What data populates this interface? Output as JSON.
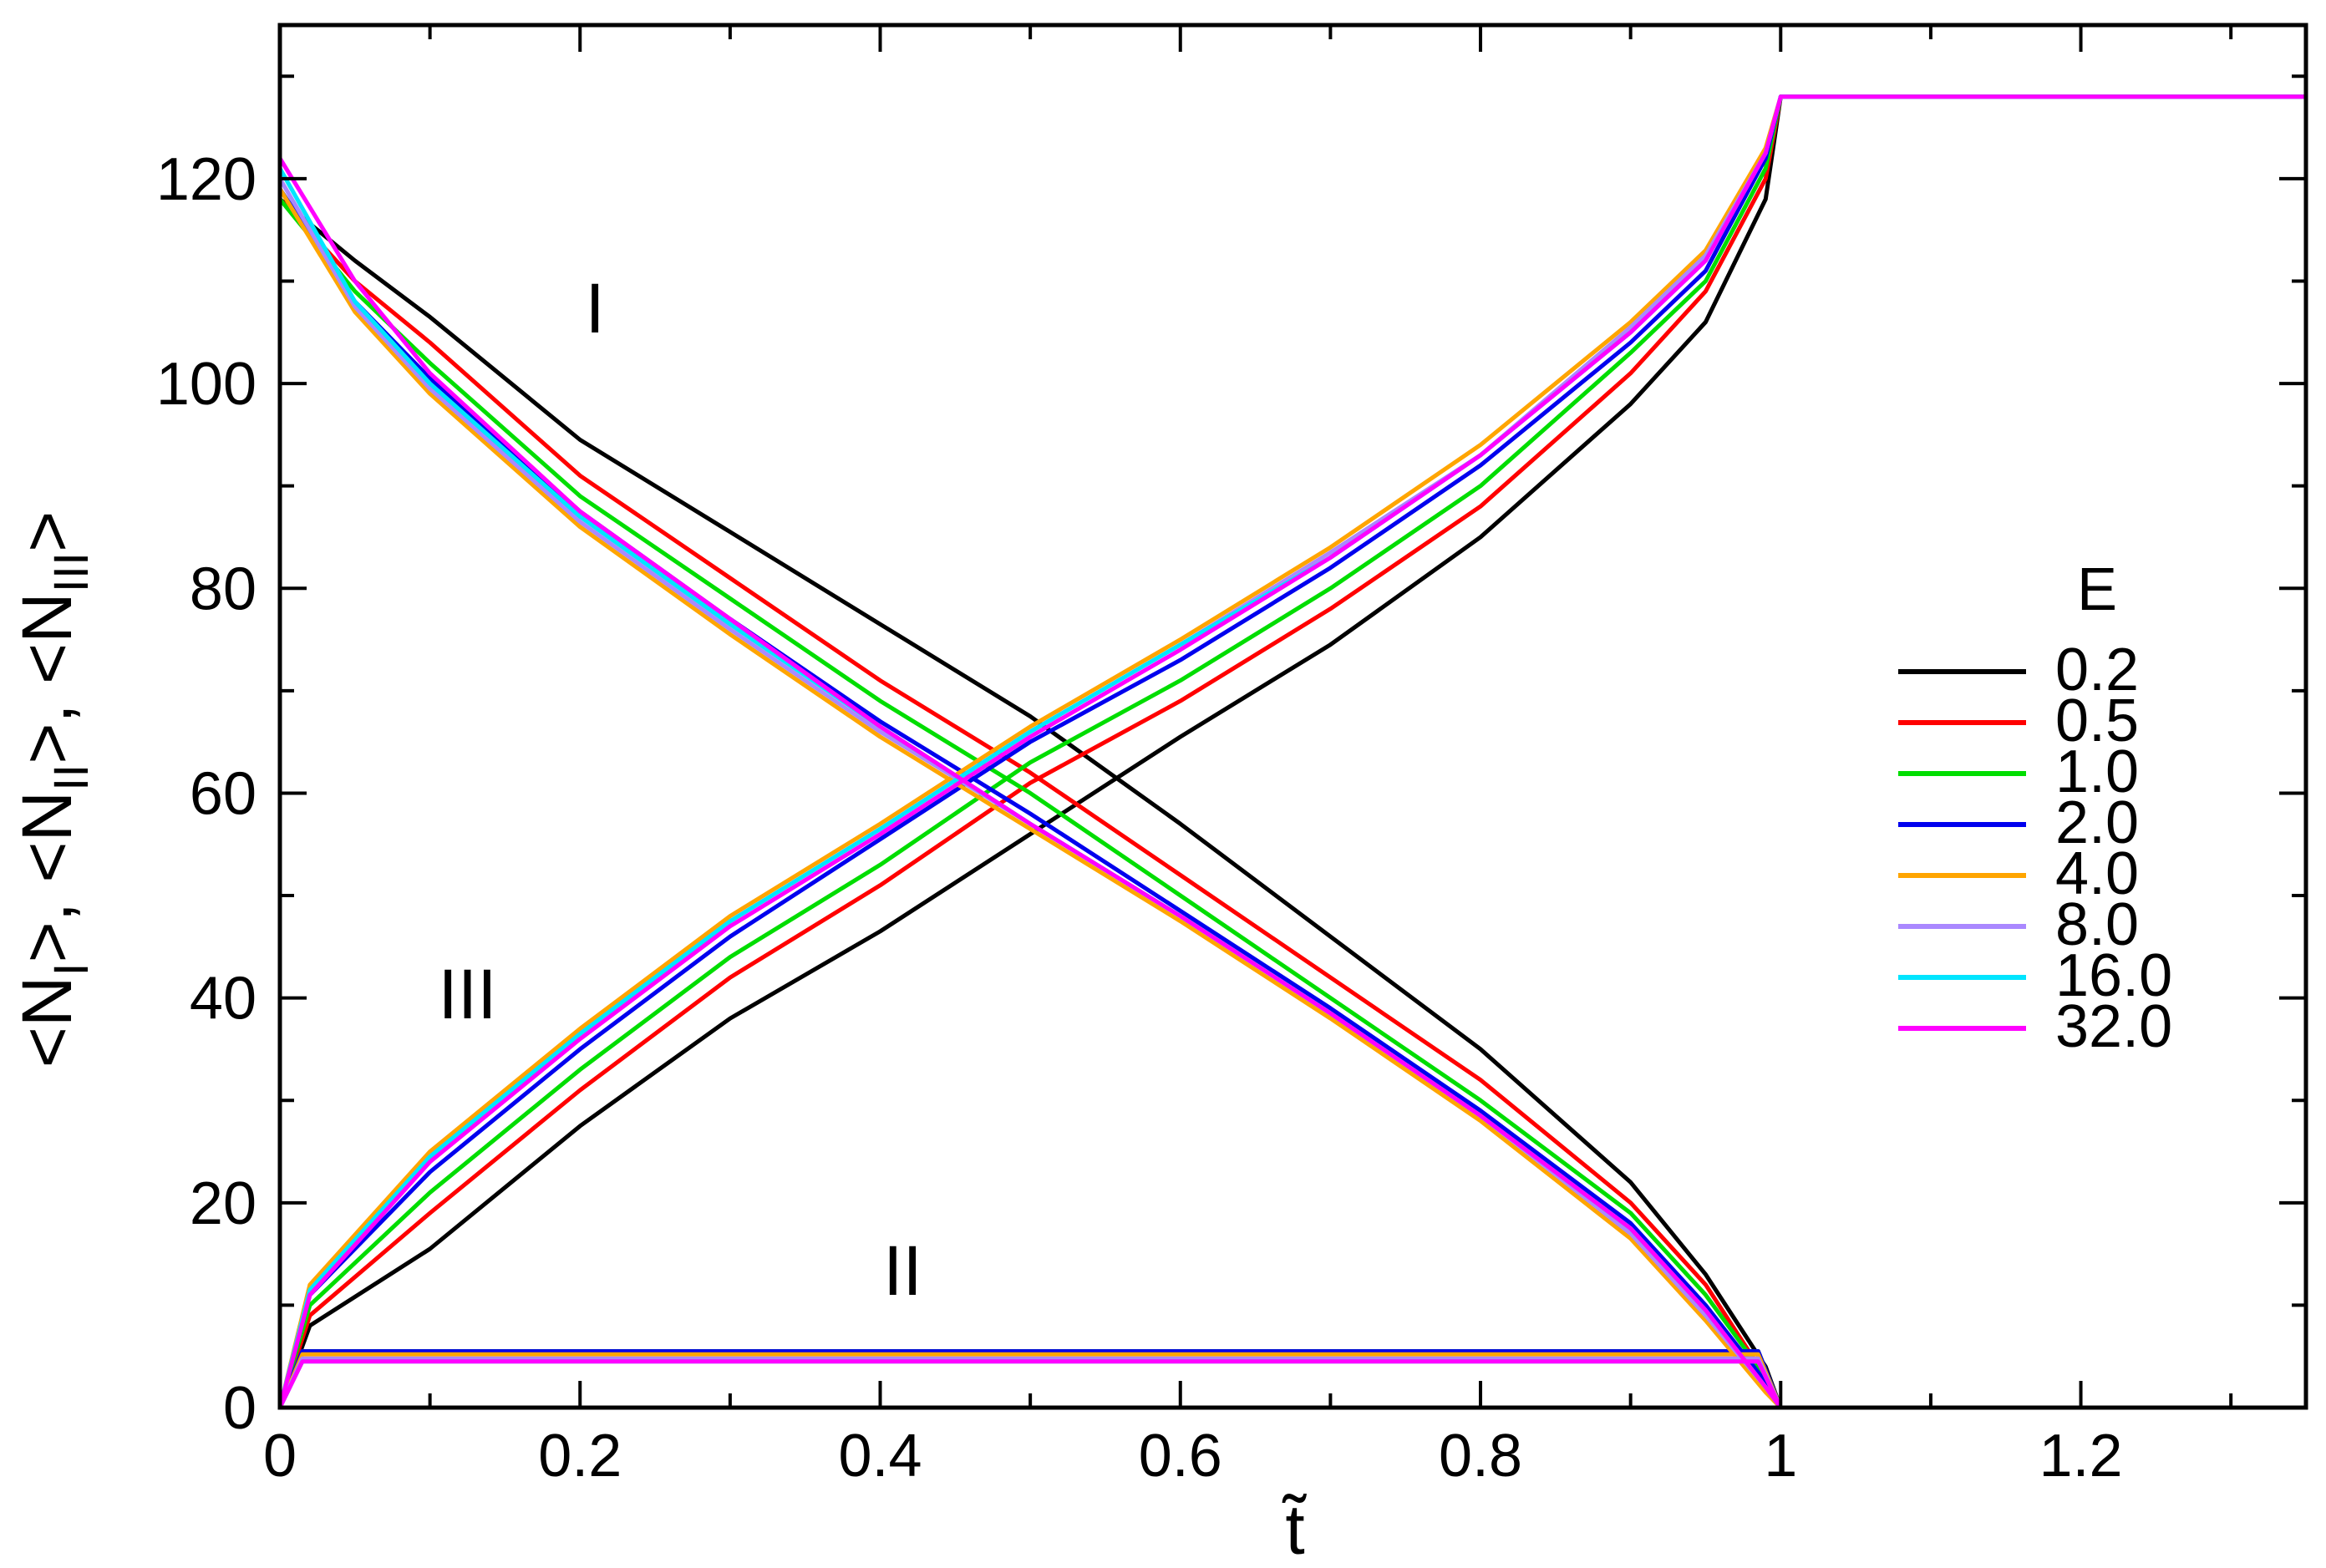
{
  "chart_data": {
    "type": "line",
    "xlabel": "t̃",
    "ylabel_parts": [
      "<N",
      "I",
      ">,   <N",
      "II",
      ">,   <N",
      "III",
      ">"
    ],
    "xlim": [
      0,
      1.35
    ],
    "ylim": [
      0,
      135
    ],
    "x_ticks": [
      0,
      0.2,
      0.4,
      0.6,
      0.8,
      1,
      1.2
    ],
    "x_tick_labels": [
      "0",
      "0.2",
      "0.4",
      "0.6",
      "0.8",
      "1",
      "1.2"
    ],
    "y_ticks": [
      0,
      20,
      40,
      60,
      80,
      100,
      120
    ],
    "y_tick_labels": [
      "0",
      "20",
      "40",
      "60",
      "80",
      "100",
      "120"
    ],
    "legend_title": "E",
    "legend_position": "right",
    "region_labels": [
      {
        "text": "I",
        "x": 0.21,
        "y": 105
      },
      {
        "text": "III",
        "x": 0.125,
        "y": 38
      },
      {
        "text": "II",
        "x": 0.415,
        "y": 11
      }
    ],
    "n_final": 128,
    "series": [
      {
        "name": "0.2",
        "color": "#000000",
        "region_I": [
          [
            0,
            118
          ],
          [
            0.05,
            112
          ],
          [
            0.1,
            106.5
          ],
          [
            0.2,
            94.5
          ],
          [
            0.3,
            85.5
          ],
          [
            0.4,
            76.5
          ],
          [
            0.5,
            67.5
          ],
          [
            0.6,
            57
          ],
          [
            0.7,
            46
          ],
          [
            0.8,
            35
          ],
          [
            0.9,
            22
          ],
          [
            0.95,
            13
          ],
          [
            0.99,
            4
          ],
          [
            1.0,
            0
          ]
        ],
        "region_III": [
          [
            0,
            0
          ],
          [
            0.02,
            8
          ],
          [
            0.1,
            15.5
          ],
          [
            0.2,
            27.5
          ],
          [
            0.3,
            38
          ],
          [
            0.4,
            46.5
          ],
          [
            0.5,
            56
          ],
          [
            0.6,
            65.5
          ],
          [
            0.7,
            74.5
          ],
          [
            0.8,
            85
          ],
          [
            0.9,
            98
          ],
          [
            0.95,
            106
          ],
          [
            0.99,
            118
          ],
          [
            1.0,
            128
          ]
        ],
        "region_II": 5.5
      },
      {
        "name": "0.5",
        "color": "#ff0000",
        "region_I": [
          [
            0,
            118
          ],
          [
            0.05,
            110
          ],
          [
            0.1,
            104
          ],
          [
            0.2,
            91
          ],
          [
            0.3,
            81
          ],
          [
            0.4,
            71
          ],
          [
            0.5,
            62
          ],
          [
            0.6,
            52
          ],
          [
            0.7,
            42
          ],
          [
            0.8,
            32
          ],
          [
            0.9,
            20
          ],
          [
            0.95,
            12
          ],
          [
            0.99,
            3
          ],
          [
            1.0,
            0
          ]
        ],
        "region_III": [
          [
            0,
            0
          ],
          [
            0.02,
            9
          ],
          [
            0.1,
            19
          ],
          [
            0.2,
            31
          ],
          [
            0.3,
            42
          ],
          [
            0.4,
            51
          ],
          [
            0.5,
            61
          ],
          [
            0.6,
            69
          ],
          [
            0.7,
            78
          ],
          [
            0.8,
            88
          ],
          [
            0.9,
            101
          ],
          [
            0.95,
            109
          ],
          [
            0.99,
            120
          ],
          [
            1.0,
            128
          ]
        ],
        "region_II": 5.5
      },
      {
        "name": "1.0",
        "color": "#00dd00",
        "region_I": [
          [
            0,
            118
          ],
          [
            0.05,
            109
          ],
          [
            0.1,
            102
          ],
          [
            0.2,
            89
          ],
          [
            0.3,
            79
          ],
          [
            0.4,
            69
          ],
          [
            0.5,
            60
          ],
          [
            0.6,
            50
          ],
          [
            0.7,
            40
          ],
          [
            0.8,
            30
          ],
          [
            0.9,
            19
          ],
          [
            0.95,
            11
          ],
          [
            0.99,
            3
          ],
          [
            1.0,
            0
          ]
        ],
        "region_III": [
          [
            0,
            0
          ],
          [
            0.02,
            10
          ],
          [
            0.1,
            21
          ],
          [
            0.2,
            33
          ],
          [
            0.3,
            44
          ],
          [
            0.4,
            53
          ],
          [
            0.5,
            63
          ],
          [
            0.6,
            71
          ],
          [
            0.7,
            80
          ],
          [
            0.8,
            90
          ],
          [
            0.9,
            103
          ],
          [
            0.95,
            110
          ],
          [
            0.99,
            121
          ],
          [
            1.0,
            128
          ]
        ],
        "region_II": 5.5
      },
      {
        "name": "2.0",
        "color": "#0000ee",
        "region_I": [
          [
            0,
            119
          ],
          [
            0.05,
            108
          ],
          [
            0.1,
            100.5
          ],
          [
            0.2,
            87.5
          ],
          [
            0.3,
            77
          ],
          [
            0.4,
            67
          ],
          [
            0.5,
            58
          ],
          [
            0.6,
            48.5
          ],
          [
            0.7,
            39
          ],
          [
            0.8,
            29
          ],
          [
            0.9,
            18
          ],
          [
            0.95,
            10
          ],
          [
            0.99,
            2.5
          ],
          [
            1.0,
            0
          ]
        ],
        "region_III": [
          [
            0,
            0
          ],
          [
            0.02,
            11
          ],
          [
            0.1,
            23
          ],
          [
            0.2,
            35
          ],
          [
            0.3,
            46
          ],
          [
            0.4,
            55.5
          ],
          [
            0.5,
            65
          ],
          [
            0.6,
            73
          ],
          [
            0.7,
            82
          ],
          [
            0.8,
            92
          ],
          [
            0.9,
            104
          ],
          [
            0.95,
            111
          ],
          [
            0.99,
            122
          ],
          [
            1.0,
            128
          ]
        ],
        "region_II": 5.5
      },
      {
        "name": "4.0",
        "color": "#ffa500",
        "region_I": [
          [
            0,
            119
          ],
          [
            0.05,
            107
          ],
          [
            0.1,
            99
          ],
          [
            0.2,
            86
          ],
          [
            0.3,
            75.5
          ],
          [
            0.4,
            65.5
          ],
          [
            0.5,
            56.5
          ],
          [
            0.6,
            47.5
          ],
          [
            0.7,
            38
          ],
          [
            0.8,
            28
          ],
          [
            0.9,
            16.5
          ],
          [
            0.95,
            8.5
          ],
          [
            0.99,
            1.5
          ],
          [
            1.0,
            0
          ]
        ],
        "region_III": [
          [
            0,
            0
          ],
          [
            0.02,
            12
          ],
          [
            0.1,
            25
          ],
          [
            0.2,
            37
          ],
          [
            0.3,
            48
          ],
          [
            0.4,
            57
          ],
          [
            0.5,
            66.5
          ],
          [
            0.6,
            75
          ],
          [
            0.7,
            84
          ],
          [
            0.8,
            94
          ],
          [
            0.9,
            106
          ],
          [
            0.95,
            113
          ],
          [
            0.99,
            123
          ],
          [
            1.0,
            128
          ]
        ],
        "region_II": 5.2
      },
      {
        "name": "8.0",
        "color": "#aa88ff",
        "region_I": [
          [
            0,
            120
          ],
          [
            0.05,
            107.5
          ],
          [
            0.1,
            99.5
          ],
          [
            0.2,
            86.5
          ],
          [
            0.3,
            76
          ],
          [
            0.4,
            66
          ],
          [
            0.5,
            57
          ],
          [
            0.6,
            48
          ],
          [
            0.7,
            38.5
          ],
          [
            0.8,
            28.5
          ],
          [
            0.9,
            17
          ],
          [
            0.95,
            9
          ],
          [
            0.99,
            2
          ],
          [
            1.0,
            0
          ]
        ],
        "region_III": [
          [
            0,
            0
          ],
          [
            0.02,
            11.5
          ],
          [
            0.1,
            24.5
          ],
          [
            0.2,
            36.5
          ],
          [
            0.3,
            47.5
          ],
          [
            0.4,
            56.5
          ],
          [
            0.5,
            66
          ],
          [
            0.6,
            74.5
          ],
          [
            0.7,
            83.5
          ],
          [
            0.8,
            93
          ],
          [
            0.9,
            105.5
          ],
          [
            0.95,
            112.5
          ],
          [
            0.99,
            122.5
          ],
          [
            1.0,
            128
          ]
        ],
        "region_II": 4.8
      },
      {
        "name": "16.0",
        "color": "#00e5ff",
        "region_I": [
          [
            0,
            121
          ],
          [
            0.05,
            108
          ],
          [
            0.1,
            100
          ],
          [
            0.2,
            87
          ],
          [
            0.3,
            76.5
          ],
          [
            0.4,
            66.5
          ],
          [
            0.5,
            57
          ],
          [
            0.6,
            48
          ],
          [
            0.7,
            38.5
          ],
          [
            0.8,
            28.5
          ],
          [
            0.9,
            17.5
          ],
          [
            0.95,
            9.5
          ],
          [
            0.99,
            2
          ],
          [
            1.0,
            0
          ]
        ],
        "region_III": [
          [
            0,
            0
          ],
          [
            0.02,
            11.5
          ],
          [
            0.1,
            24.5
          ],
          [
            0.2,
            36.5
          ],
          [
            0.3,
            47.5
          ],
          [
            0.4,
            56.5
          ],
          [
            0.5,
            66
          ],
          [
            0.6,
            74.5
          ],
          [
            0.7,
            83
          ],
          [
            0.8,
            93
          ],
          [
            0.9,
            105
          ],
          [
            0.95,
            112
          ],
          [
            0.99,
            122.5
          ],
          [
            1.0,
            128
          ]
        ],
        "region_II": 4.5
      },
      {
        "name": "32.0",
        "color": "#ff00ff",
        "region_I": [
          [
            0,
            122
          ],
          [
            0.05,
            110
          ],
          [
            0.1,
            101
          ],
          [
            0.2,
            87.5
          ],
          [
            0.3,
            77
          ],
          [
            0.4,
            66.5
          ],
          [
            0.5,
            57
          ],
          [
            0.6,
            48
          ],
          [
            0.7,
            38.5
          ],
          [
            0.8,
            28.5
          ],
          [
            0.9,
            17.5
          ],
          [
            0.95,
            9.5
          ],
          [
            0.99,
            2
          ],
          [
            1.0,
            0
          ]
        ],
        "region_III": [
          [
            0,
            0
          ],
          [
            0.02,
            11
          ],
          [
            0.1,
            24
          ],
          [
            0.2,
            36
          ],
          [
            0.3,
            47
          ],
          [
            0.4,
            56
          ],
          [
            0.5,
            65.5
          ],
          [
            0.6,
            74
          ],
          [
            0.7,
            83
          ],
          [
            0.8,
            93
          ],
          [
            0.9,
            105
          ],
          [
            0.95,
            112
          ],
          [
            0.99,
            122.5
          ],
          [
            1.0,
            128
          ]
        ],
        "region_II": 4.5
      }
    ]
  }
}
